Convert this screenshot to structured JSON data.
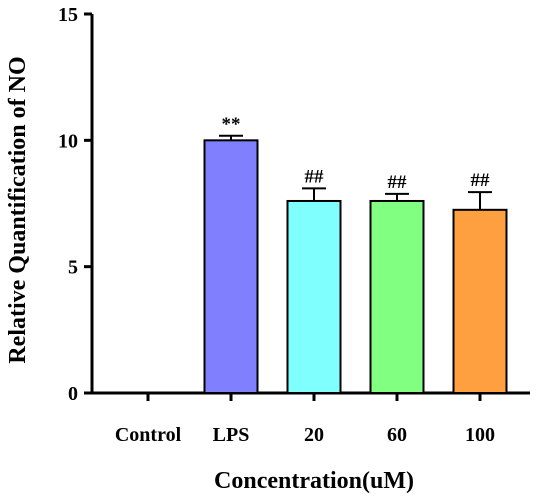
{
  "chart_data": {
    "type": "bar",
    "title": "",
    "xlabel": "Concentration(uM)",
    "ylabel": "Relative Quantification of NO",
    "ylim": [
      0,
      15
    ],
    "yticks": [
      0,
      5,
      10,
      15
    ],
    "grid": false,
    "legend": "none",
    "categories": [
      "Control",
      "LPS",
      "20",
      "60",
      "100"
    ],
    "values": [
      0,
      10.0,
      7.6,
      7.6,
      7.25
    ],
    "errors": [
      0,
      0.18,
      0.5,
      0.28,
      0.7
    ],
    "annotations": [
      "",
      "**",
      "##",
      "##",
      "##"
    ],
    "colors": [
      "#ffffff",
      "#8080ff",
      "#80ffff",
      "#80ff80",
      "#ffa040"
    ]
  }
}
